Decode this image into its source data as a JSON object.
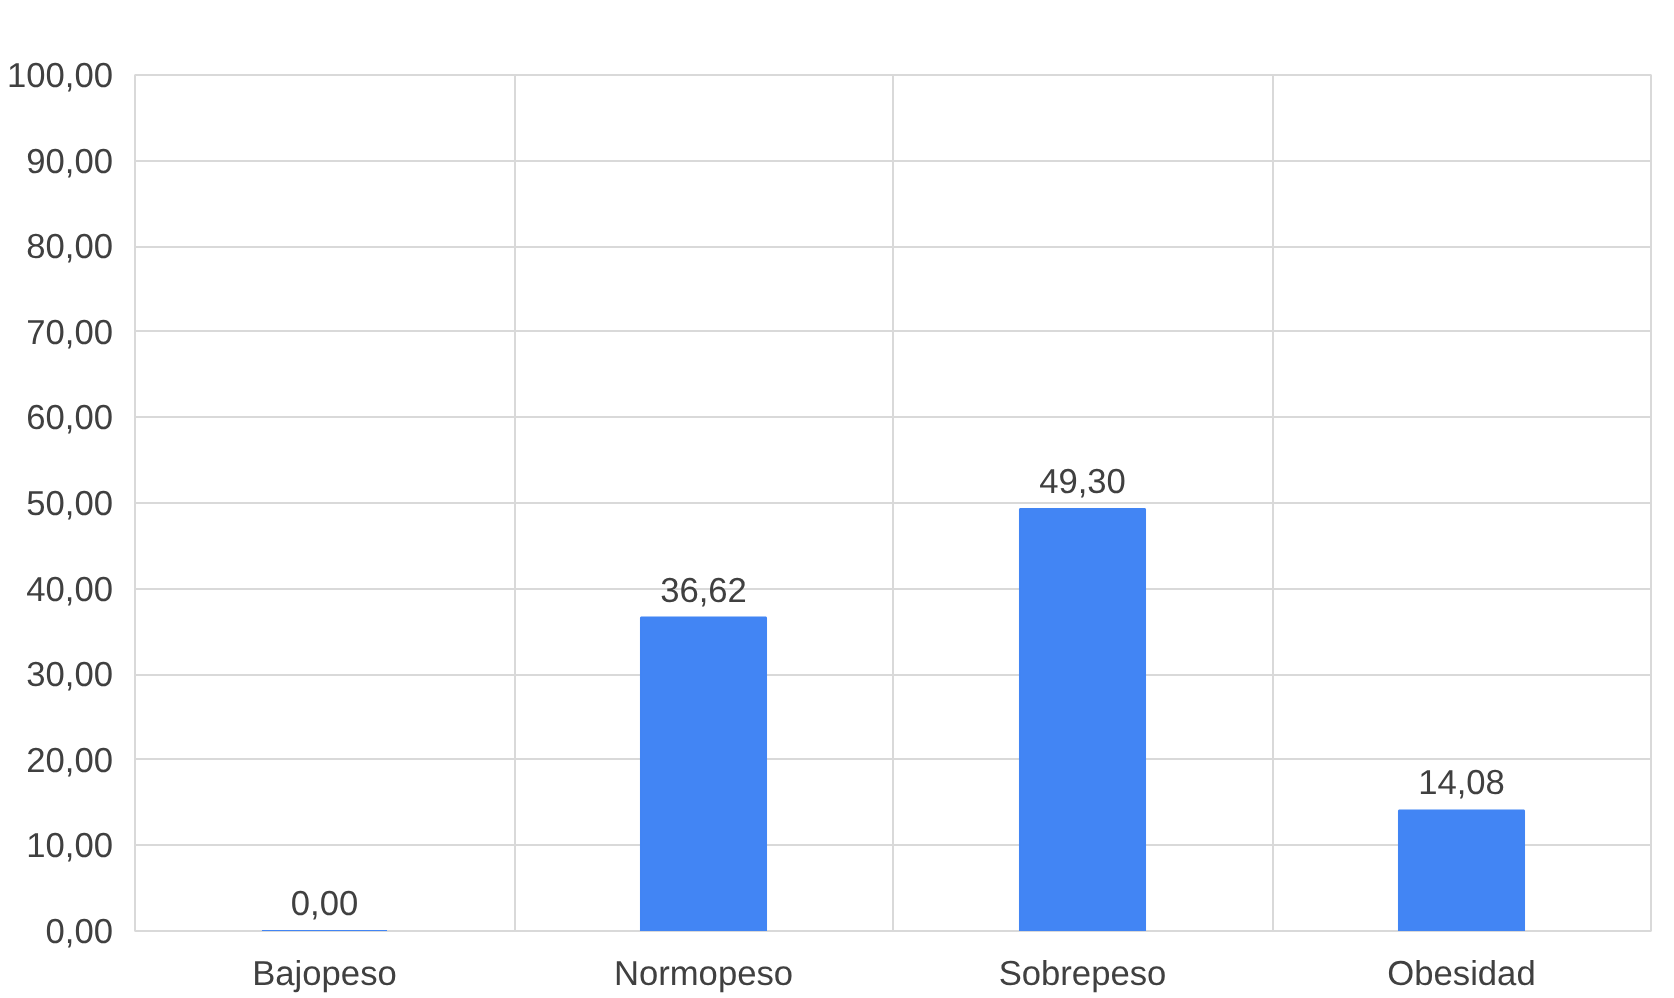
{
  "chart_data": {
    "type": "bar",
    "categories": [
      "Bajopeso",
      "Normopeso",
      "Sobrepeso",
      "Obesidad"
    ],
    "values": [
      0.0,
      36.62,
      49.3,
      14.08
    ],
    "value_labels": [
      "0,00",
      "36,62",
      "49,30",
      "14,08"
    ],
    "color": "#4285f4",
    "ylim": [
      0,
      100
    ],
    "yticks": [
      {
        "value": 0,
        "label": "0,00"
      },
      {
        "value": 10,
        "label": "10,00"
      },
      {
        "value": 20,
        "label": "20,00"
      },
      {
        "value": 30,
        "label": "30,00"
      },
      {
        "value": 40,
        "label": "40,00"
      },
      {
        "value": 50,
        "label": "50,00"
      },
      {
        "value": 60,
        "label": "60,00"
      },
      {
        "value": 70,
        "label": "70,00"
      },
      {
        "value": 80,
        "label": "80,00"
      },
      {
        "value": 90,
        "label": "90,00"
      },
      {
        "value": 100,
        "label": "100,00"
      }
    ],
    "grid": true
  }
}
